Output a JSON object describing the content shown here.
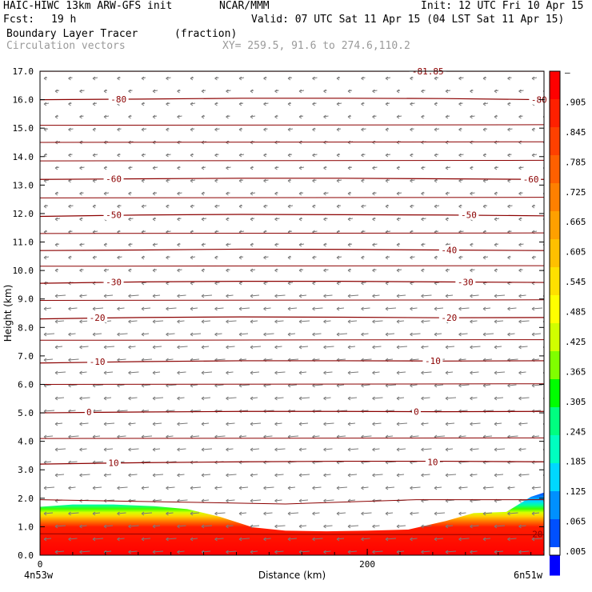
{
  "header": {
    "model": "HAIC-HIWC 13km ARW-GFS init",
    "org": "NCAR/MMM",
    "init": "Init: 12 UTC Fri 10 Apr 15",
    "fcst_label": "Fcst:",
    "fcst_value": "19 h",
    "valid": "Valid: 07 UTC Sat 11 Apr 15 (04 LST Sat 11 Apr 15)",
    "field": "Boundary Layer Tracer",
    "field_units": "(fraction)",
    "overlay": "Circulation vectors",
    "xy": "XY= 259.5, 91.6 to 274.6,110.2"
  },
  "chart_data": {
    "type": "area",
    "xlabel": "Distance (km)",
    "ylabel": "Height (km)",
    "xlim": [
      0,
      308
    ],
    "ylim": [
      0,
      17
    ],
    "x_ticks": [
      {
        "value": 0,
        "label": "0"
      },
      {
        "value": 200,
        "label": "200"
      }
    ],
    "x_end_labels": {
      "left": "4n53w",
      "right": "6n51w"
    },
    "y_ticks": [
      {
        "value": 0,
        "label": "0.0"
      },
      {
        "value": 1,
        "label": "1.0"
      },
      {
        "value": 2,
        "label": "2.0"
      },
      {
        "value": 3,
        "label": "3.0"
      },
      {
        "value": 4,
        "label": "4.0"
      },
      {
        "value": 5,
        "label": "5.0"
      },
      {
        "value": 6,
        "label": "6.0"
      },
      {
        "value": 7,
        "label": "7.0"
      },
      {
        "value": 8,
        "label": "8.0"
      },
      {
        "value": 9,
        "label": "9.0"
      },
      {
        "value": 10,
        "label": "10.0"
      },
      {
        "value": 11,
        "label": "11.0"
      },
      {
        "value": 12,
        "label": "12.0"
      },
      {
        "value": 13,
        "label": "13.0"
      },
      {
        "value": 14,
        "label": "14.0"
      },
      {
        "value": 15,
        "label": "15.0"
      },
      {
        "value": 16,
        "label": "16.0"
      },
      {
        "value": 17,
        "label": "17.0"
      }
    ],
    "colorbar": {
      "labels": [
        "–",
        ".905",
        ".845",
        ".785",
        ".725",
        ".665",
        ".605",
        ".545",
        ".485",
        ".425",
        ".365",
        ".305",
        ".245",
        ".185",
        ".125",
        ".065",
        ".005"
      ],
      "colors": [
        "#ff0000",
        "#ff2000",
        "#ff4000",
        "#ff6000",
        "#ff8000",
        "#ffa000",
        "#ffc000",
        "#ffe000",
        "#ffff00",
        "#d0ff00",
        "#80ff00",
        "#00ff00",
        "#00ff80",
        "#00ffc0",
        "#00d8ff",
        "#0090ff",
        "#0050ff",
        "#0000ff"
      ]
    },
    "tracer_top_km": [
      [
        0,
        1.7
      ],
      [
        20,
        1.78
      ],
      [
        45,
        1.78
      ],
      [
        70,
        1.72
      ],
      [
        90,
        1.62
      ],
      [
        110,
        1.35
      ],
      [
        130,
        0.98
      ],
      [
        150,
        0.86
      ],
      [
        175,
        0.84
      ],
      [
        200,
        0.86
      ],
      [
        225,
        0.9
      ],
      [
        248,
        1.2
      ],
      [
        265,
        1.48
      ],
      [
        285,
        1.52
      ],
      [
        300,
        2.05
      ],
      [
        308,
        2.2
      ]
    ],
    "isotherms": [
      {
        "label": "10",
        "value": 10,
        "y": [
          3.2,
          3.25,
          3.28,
          3.3,
          3.3,
          3.28
        ]
      },
      {
        "label": "0",
        "value": 0,
        "y": [
          5.0,
          5.03,
          5.05,
          5.05,
          5.04,
          5.05
        ]
      },
      {
        "label": "-10",
        "value": -10,
        "y": [
          6.75,
          6.8,
          6.83,
          6.83,
          6.82,
          6.83
        ]
      },
      {
        "label": "-20",
        "value": -20,
        "y": [
          8.3,
          8.35,
          8.37,
          8.36,
          8.34,
          8.35
        ]
      },
      {
        "label": "-30",
        "value": -30,
        "y": [
          9.55,
          9.6,
          9.62,
          9.62,
          9.6,
          9.58
        ]
      },
      {
        "label": "-40",
        "value": -40,
        "y": [
          10.7,
          10.72,
          10.75,
          10.74,
          10.72,
          10.7
        ]
      },
      {
        "label": "-50",
        "value": -50,
        "y": [
          11.9,
          11.95,
          11.97,
          11.96,
          11.95,
          11.92
        ]
      },
      {
        "label": "-60",
        "value": -60,
        "y": [
          13.2,
          13.22,
          13.24,
          13.24,
          13.22,
          13.2
        ]
      },
      {
        "label": "-80",
        "value": -80,
        "y": [
          16.0,
          16.02,
          16.05,
          16.05,
          16.04,
          16.0
        ]
      },
      {
        "label": "-81.85",
        "value": -81.85,
        "y": [
          17.0,
          17.0,
          17.0,
          17.0,
          17.0,
          17.0
        ]
      }
    ],
    "isotherm_labels": [
      {
        "text": "10",
        "x": 45,
        "y": 3.25
      },
      {
        "text": "10",
        "x": 240,
        "y": 3.28
      },
      {
        "text": "0",
        "x": 30,
        "y": 5.03
      },
      {
        "text": "0",
        "x": 230,
        "y": 5.05
      },
      {
        "text": "-10",
        "x": 35,
        "y": 6.8
      },
      {
        "text": "-10",
        "x": 240,
        "y": 6.83
      },
      {
        "text": "-20",
        "x": 35,
        "y": 8.35
      },
      {
        "text": "-20",
        "x": 250,
        "y": 8.35
      },
      {
        "text": "-30",
        "x": 45,
        "y": 9.6
      },
      {
        "text": "-30",
        "x": 260,
        "y": 9.6
      },
      {
        "text": "-40",
        "x": 250,
        "y": 10.72
      },
      {
        "text": "-50",
        "x": 45,
        "y": 11.95
      },
      {
        "text": "-50",
        "x": 262,
        "y": 11.95
      },
      {
        "text": "-60",
        "x": 45,
        "y": 13.22
      },
      {
        "text": "-60",
        "x": 300,
        "y": 13.2
      },
      {
        "text": "-80",
        "x": 48,
        "y": 16.02
      },
      {
        "text": "-80",
        "x": 305,
        "y": 16.0
      },
      {
        "text": "-81.85",
        "x": 237,
        "y": 17.0
      }
    ],
    "inner_label": {
      "text": "20",
      "x": 304,
      "y": 0.75
    }
  }
}
